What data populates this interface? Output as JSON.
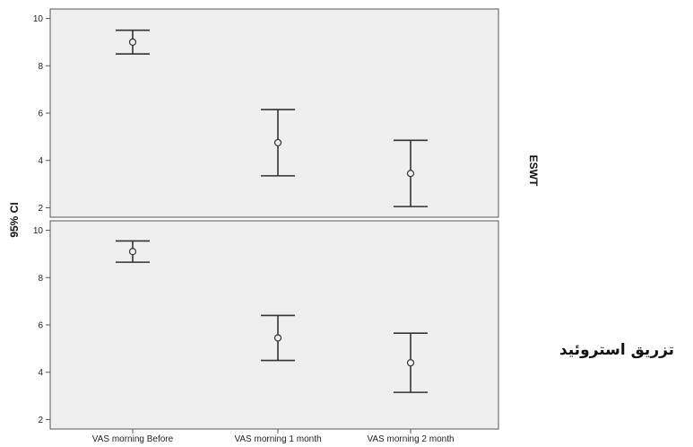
{
  "chart_data": {
    "type": "errorbar",
    "ylabel": "95% CI",
    "categories": [
      "VAS  morning Before",
      "VAS morning  1 month",
      "VAS morning  2 month"
    ],
    "ylim": [
      1.6,
      10.4
    ],
    "yticks": [
      2,
      4,
      6,
      8,
      10
    ],
    "grid": false,
    "panels": [
      {
        "label": "ESWT",
        "points": [
          {
            "mean": 9.0,
            "lower": 8.5,
            "upper": 9.5
          },
          {
            "mean": 4.75,
            "lower": 3.35,
            "upper": 6.15
          },
          {
            "mean": 3.45,
            "lower": 2.05,
            "upper": 4.85
          }
        ]
      },
      {
        "label": "تزریق استروئید",
        "points": [
          {
            "mean": 9.1,
            "lower": 8.65,
            "upper": 9.55
          },
          {
            "mean": 5.45,
            "lower": 4.5,
            "upper": 6.4
          },
          {
            "mean": 4.4,
            "lower": 3.15,
            "upper": 5.65
          }
        ]
      }
    ],
    "colors": {
      "panel_background": "#efefef",
      "frame": "#555555",
      "marks": "#333333"
    }
  }
}
